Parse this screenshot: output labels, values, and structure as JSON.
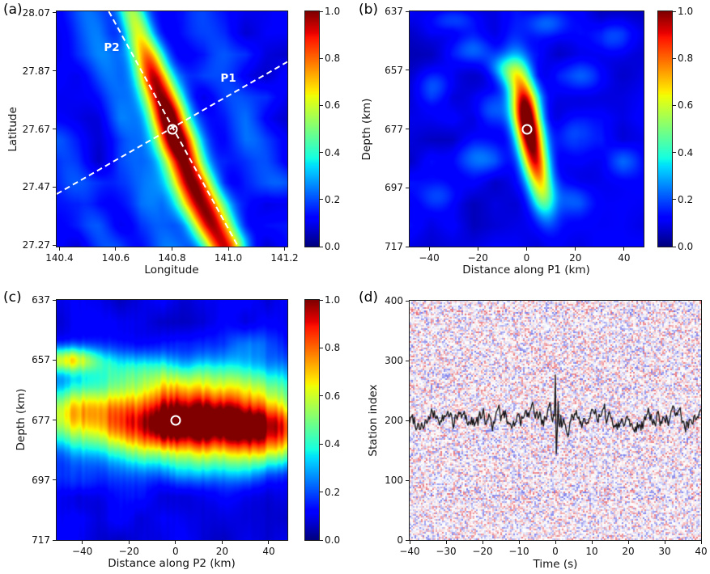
{
  "figure": {
    "background": "#ffffff",
    "colormap": "jet",
    "marker_color": "#ffffff",
    "profile_line_color": "#ffffff"
  },
  "chart_data": [
    {
      "panel": "(a)",
      "type": "heatmap",
      "xlabel": "Longitude",
      "ylabel": "Latitude",
      "xlim": [
        140.39,
        141.21
      ],
      "ylim": [
        28.075,
        27.265
      ],
      "x_ticks": [
        {
          "label": "140.4",
          "v": 140.4
        },
        {
          "label": "140.6",
          "v": 140.6
        },
        {
          "label": "140.8",
          "v": 140.8
        },
        {
          "label": "141.0",
          "v": 141.0
        },
        {
          "label": "141.2",
          "v": 141.2
        }
      ],
      "y_ticks": [
        {
          "label": "28.07",
          "v": 28.07
        },
        {
          "label": "27.87",
          "v": 27.87
        },
        {
          "label": "27.67",
          "v": 27.67
        },
        {
          "label": "27.47",
          "v": 27.47
        },
        {
          "label": "27.27",
          "v": 27.27
        }
      ],
      "colorbar_ticks": [
        {
          "label": "1.0",
          "v": 1.0
        },
        {
          "label": "0.8",
          "v": 0.8
        },
        {
          "label": "0.6",
          "v": 0.6
        },
        {
          "label": "0.4",
          "v": 0.4
        },
        {
          "label": "0.2",
          "v": 0.2
        },
        {
          "label": "0.0",
          "v": 0.0
        }
      ],
      "peak": {
        "lon": 140.8,
        "lat": 27.67
      },
      "profiles": [
        {
          "label": "P1",
          "line": [
            [
              140.39,
              27.446
            ],
            [
              141.21,
              27.901
            ]
          ]
        },
        {
          "label": "P2",
          "line": [
            [
              140.575,
              28.075
            ],
            [
              141.035,
              27.265
            ]
          ]
        }
      ],
      "field": {
        "base": 0.1,
        "noise_amp": 0.05,
        "ridge": [
          [
            140.655,
            28.075,
            0.42,
            0.034
          ],
          [
            140.695,
            27.96,
            0.62,
            0.038
          ],
          [
            140.74,
            27.84,
            0.88,
            0.042
          ],
          [
            140.785,
            27.72,
            1.0,
            0.046
          ],
          [
            140.82,
            27.62,
            1.0,
            0.048
          ],
          [
            140.865,
            27.5,
            0.92,
            0.05
          ],
          [
            140.92,
            27.385,
            0.9,
            0.05
          ],
          [
            140.985,
            27.265,
            0.84,
            0.048
          ]
        ],
        "bands": [
          [
            140.5,
            28.075,
            140.79,
            27.265,
            0.13,
            0.05
          ],
          [
            140.88,
            28.075,
            141.15,
            27.5,
            0.1,
            0.06
          ],
          [
            140.39,
            27.62,
            140.56,
            27.265,
            0.1,
            0.05
          ]
        ]
      }
    },
    {
      "panel": "(b)",
      "type": "heatmap",
      "xlabel": "Distance along P1 (km)",
      "ylabel": "Depth (km)",
      "xlim": [
        -48,
        48
      ],
      "ylim": [
        637,
        717
      ],
      "x_ticks": [
        {
          "label": "−40",
          "v": -40
        },
        {
          "label": "−20",
          "v": -20
        },
        {
          "label": "0",
          "v": 0
        },
        {
          "label": "20",
          "v": 20
        },
        {
          "label": "40",
          "v": 40
        }
      ],
      "y_ticks": [
        {
          "label": "637",
          "v": 637
        },
        {
          "label": "657",
          "v": 657
        },
        {
          "label": "677",
          "v": 677
        },
        {
          "label": "697",
          "v": 697
        },
        {
          "label": "717",
          "v": 717
        }
      ],
      "colorbar_ticks": [
        {
          "label": "1.0",
          "v": 1.0
        },
        {
          "label": "0.8",
          "v": 0.8
        },
        {
          "label": "0.6",
          "v": 0.6
        },
        {
          "label": "0.4",
          "v": 0.4
        },
        {
          "label": "0.2",
          "v": 0.2
        },
        {
          "label": "0.0",
          "v": 0.0
        }
      ],
      "peak": {
        "x": 0,
        "depth": 677
      },
      "field": {
        "base": 0.09,
        "noise_amp": 0.045,
        "blobs": [
          [
            0.5,
            675,
            3.9,
            13,
            12,
            1.06
          ],
          [
            6,
            696,
            3.5,
            8,
            14,
            0.35
          ],
          [
            -9,
            657,
            5,
            3.5,
            -20,
            0.25
          ],
          [
            -22,
            650,
            6,
            3.5,
            0,
            0.13
          ],
          [
            24,
            659,
            7,
            4,
            0,
            0.12
          ],
          [
            -20,
            687,
            7,
            4,
            0,
            0.14
          ],
          [
            -36,
            700,
            6,
            4,
            0,
            0.11
          ],
          [
            18,
            701,
            6,
            4,
            0,
            0.11
          ],
          [
            34,
            646,
            6,
            4,
            0,
            0.12
          ],
          [
            -38,
            662,
            5,
            4,
            0,
            0.11
          ],
          [
            8,
            641,
            6,
            3,
            0,
            0.12
          ],
          [
            -14,
            671,
            5,
            4,
            0,
            0.12
          ],
          [
            20,
            679,
            6,
            5,
            0,
            0.13
          ],
          [
            40,
            688,
            6,
            4,
            0,
            0.1
          ],
          [
            -30,
            640,
            7,
            3,
            0,
            0.12
          ]
        ]
      }
    },
    {
      "panel": "(c)",
      "type": "heatmap",
      "xlabel": "Distance along P2 (km)",
      "ylabel": "Depth (km)",
      "xlim": [
        -51,
        48
      ],
      "ylim": [
        637,
        717
      ],
      "x_ticks": [
        {
          "label": "−40",
          "v": -40
        },
        {
          "label": "−20",
          "v": -20
        },
        {
          "label": "0",
          "v": 0
        },
        {
          "label": "20",
          "v": 20
        },
        {
          "label": "40",
          "v": 40
        }
      ],
      "y_ticks": [
        {
          "label": "637",
          "v": 637
        },
        {
          "label": "657",
          "v": 657
        },
        {
          "label": "677",
          "v": 677
        },
        {
          "label": "697",
          "v": 697
        },
        {
          "label": "717",
          "v": 717
        }
      ],
      "colorbar_ticks": [
        {
          "label": "1.0",
          "v": 1.0
        },
        {
          "label": "0.8",
          "v": 0.8
        },
        {
          "label": "0.6",
          "v": 0.6
        },
        {
          "label": "0.4",
          "v": 0.4
        },
        {
          "label": "0.2",
          "v": 0.2
        },
        {
          "label": "0.0",
          "v": 0.0
        }
      ],
      "peak": {
        "x": 0,
        "depth": 677
      },
      "field": {
        "base": 0.09,
        "noise_amp": 0.04,
        "column_noise": true,
        "blobs": [
          [
            2,
            678,
            30,
            8.2,
            0,
            1.0
          ],
          [
            40,
            680,
            16,
            7,
            0,
            0.5
          ],
          [
            -48,
            676,
            10,
            6,
            0,
            0.22
          ],
          [
            -46,
            657,
            9,
            3,
            0,
            0.5
          ],
          [
            12,
            664,
            32,
            5.5,
            0,
            0.28
          ],
          [
            -24,
            659,
            14,
            4,
            0,
            0.14
          ],
          [
            -40,
            671,
            10,
            5,
            0,
            0.15
          ],
          [
            30,
            652,
            12,
            4,
            0,
            0.1
          ],
          [
            -40,
            697,
            8,
            4,
            0,
            0.08
          ],
          [
            20,
            692,
            20,
            5,
            0,
            0.12
          ]
        ]
      }
    },
    {
      "panel": "(d)",
      "type": "record-section",
      "xlabel": "Time (s)",
      "ylabel": "Station index",
      "xlim": [
        -40,
        40
      ],
      "ylim": [
        400,
        0
      ],
      "x_ticks": [
        {
          "label": "−40",
          "v": -40
        },
        {
          "label": "−30",
          "v": -30
        },
        {
          "label": "−20",
          "v": -20
        },
        {
          "label": "−10",
          "v": -10
        },
        {
          "label": "0",
          "v": 0
        },
        {
          "label": "10",
          "v": 10
        },
        {
          "label": "20",
          "v": 20
        },
        {
          "label": "30",
          "v": 30
        },
        {
          "label": "40",
          "v": 40
        }
      ],
      "y_ticks": [
        {
          "label": "400",
          "v": 400
        },
        {
          "label": "300",
          "v": 300
        },
        {
          "label": "200",
          "v": 200
        },
        {
          "label": "100",
          "v": 100
        },
        {
          "label": "0",
          "v": 0
        }
      ],
      "background": "random red-blue waveform speckle",
      "trace": {
        "baseline": 202,
        "noise_std": 11,
        "color": "#111111",
        "spike_points": [
          [
            -0.6,
            206
          ],
          [
            -0.3,
            219
          ],
          [
            -0.15,
            183
          ],
          [
            0.05,
            307
          ],
          [
            0.3,
            103
          ],
          [
            0.55,
            198
          ],
          [
            0.8,
            240
          ],
          [
            1.1,
            172
          ],
          [
            1.45,
            213
          ],
          [
            1.8,
            184
          ],
          [
            2.2,
            206
          ]
        ]
      }
    }
  ]
}
